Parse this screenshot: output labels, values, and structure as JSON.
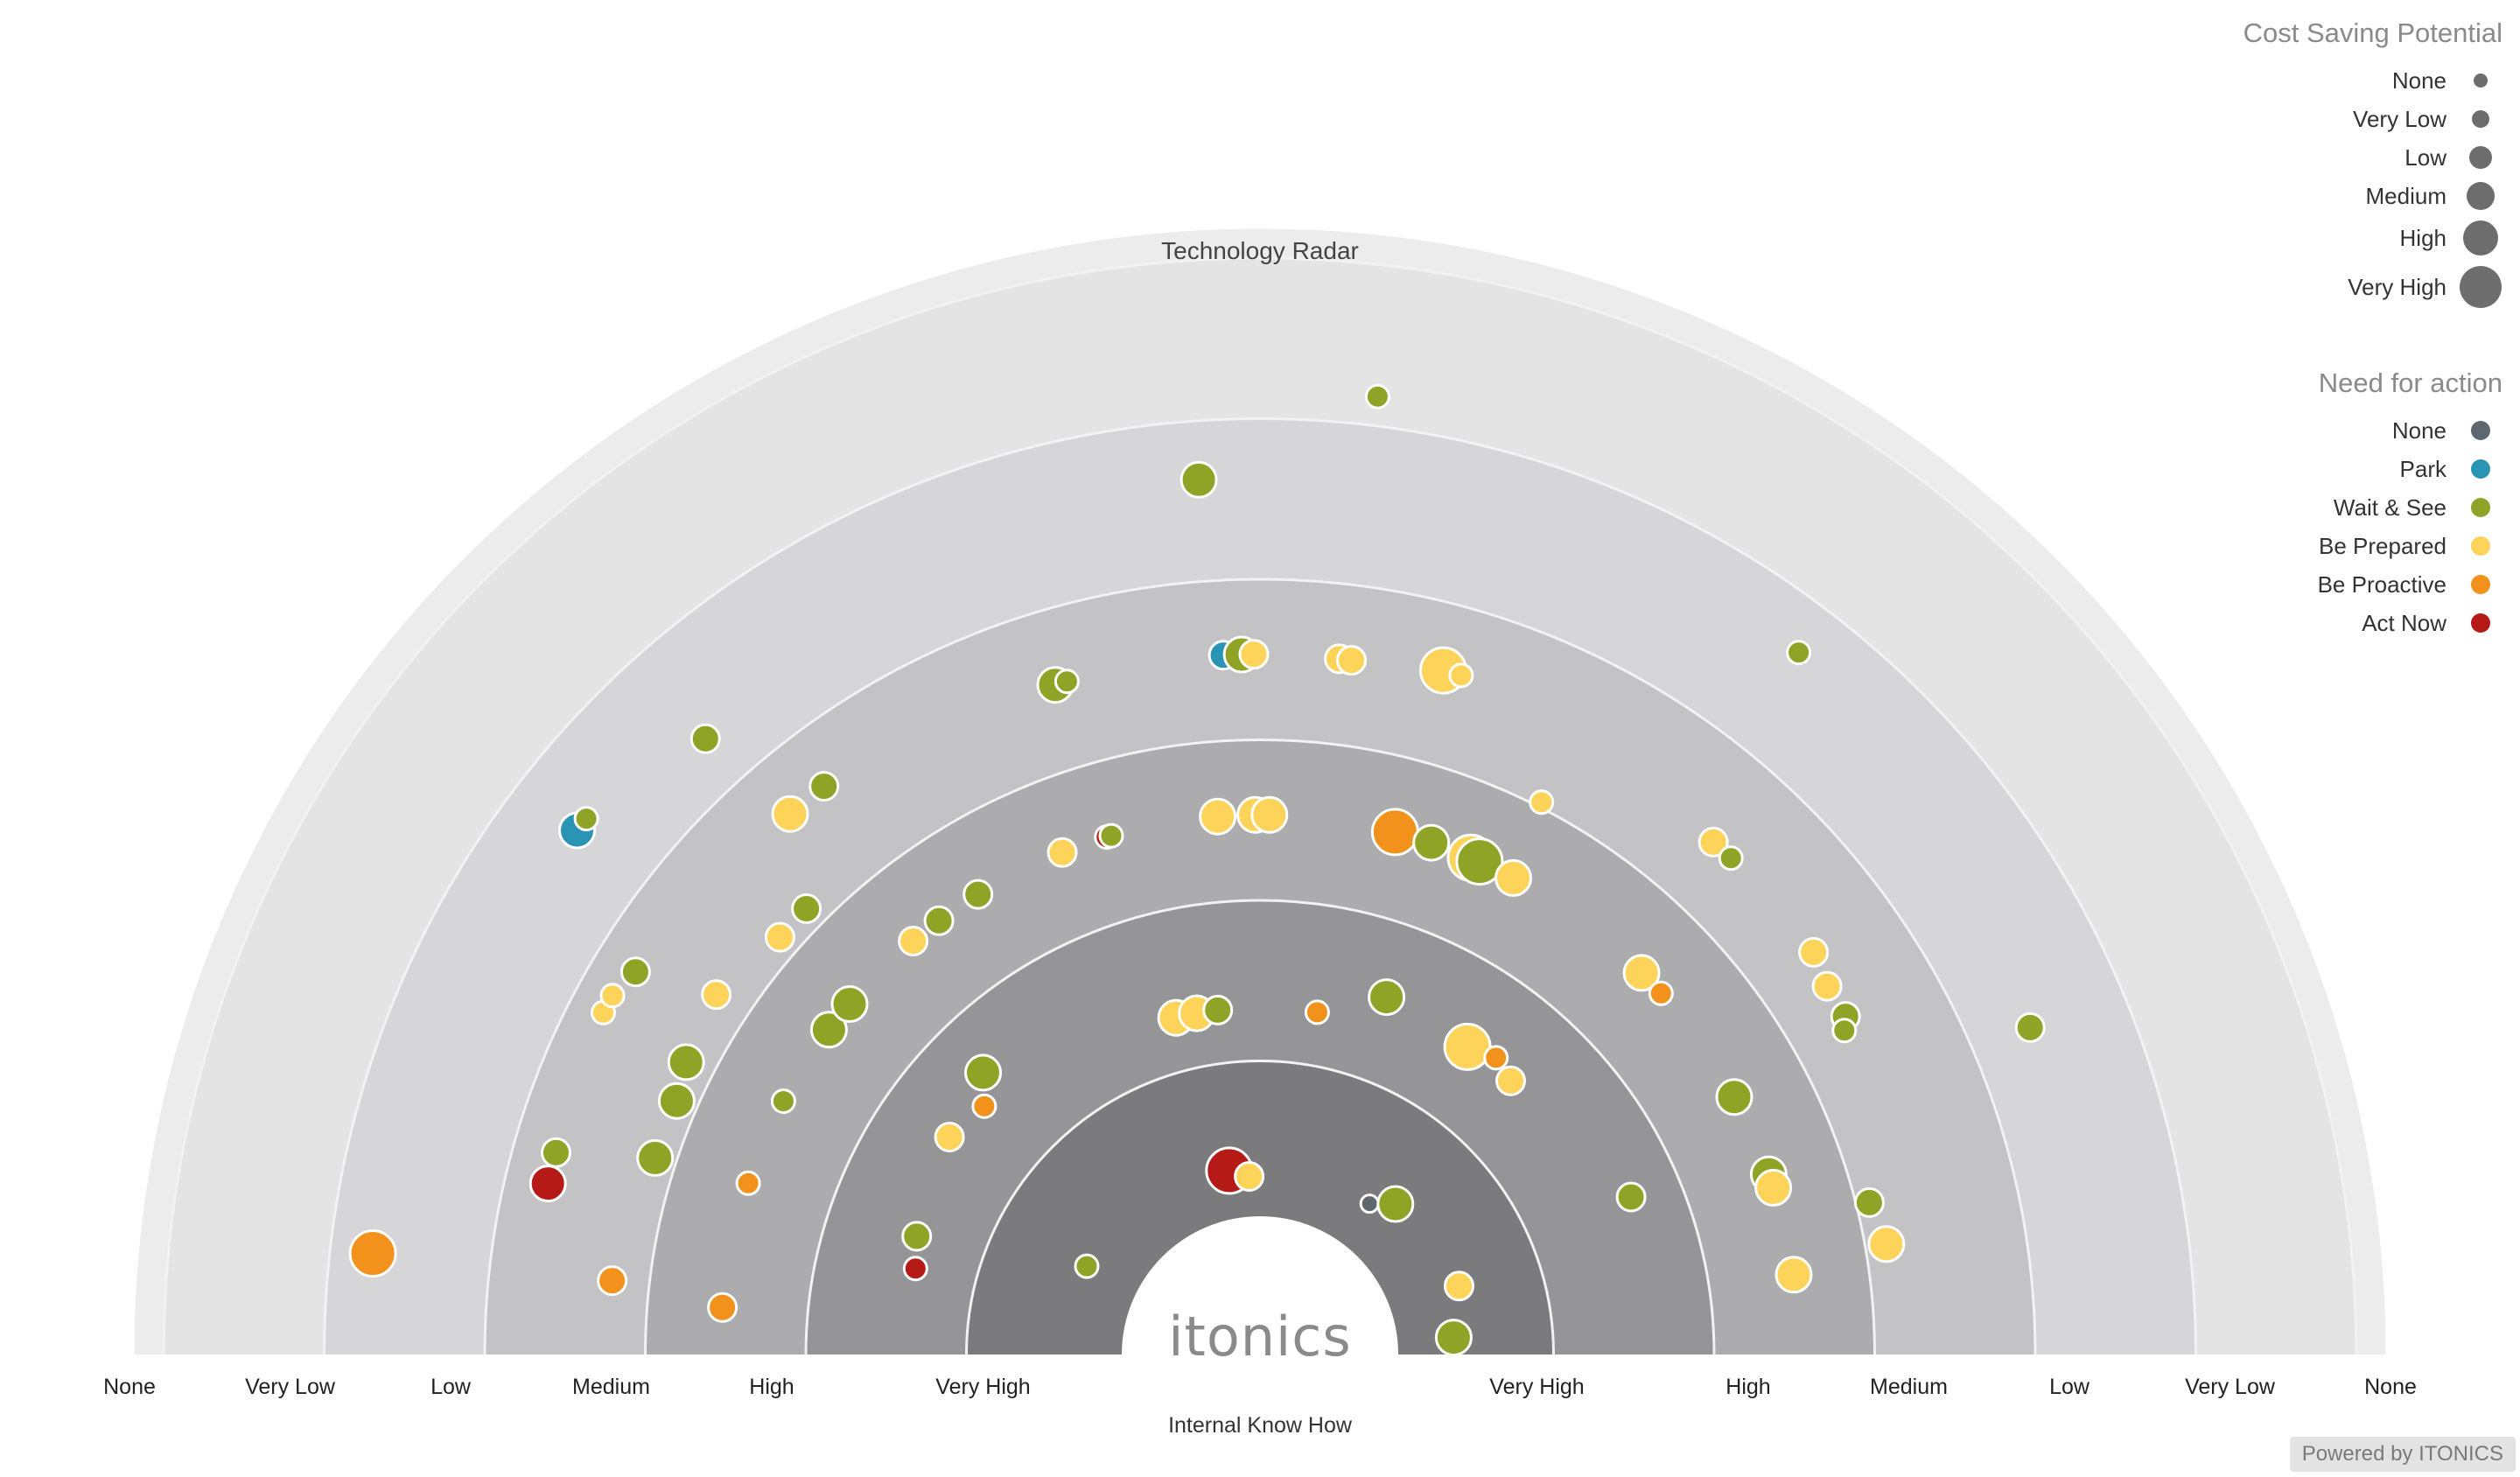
{
  "legend_cost": {
    "title": "Cost Saving Potential",
    "items": [
      {
        "label": "None",
        "size": 0
      },
      {
        "label": "Very Low",
        "size": 1
      },
      {
        "label": "Low",
        "size": 2
      },
      {
        "label": "Medium",
        "size": 3
      },
      {
        "label": "High",
        "size": 4
      },
      {
        "label": "Very High",
        "size": 5
      }
    ],
    "color": "#6d6d6d"
  },
  "legend_need": {
    "title": "Need for action",
    "items": [
      {
        "label": "None",
        "color": "#5e6770"
      },
      {
        "label": "Park",
        "color": "#2a94b5"
      },
      {
        "label": "Wait & See",
        "color": "#8fa426"
      },
      {
        "label": "Be Prepared",
        "color": "#fdd35a"
      },
      {
        "label": "Be Proactive",
        "color": "#f2911b"
      },
      {
        "label": "Act Now",
        "color": "#b51a16"
      }
    ]
  },
  "footer": {
    "powered_by": "Powered by ITONICS"
  },
  "chart_data": {
    "type": "scatter",
    "title": "Technology Radar",
    "xlabel": "Internal Know How",
    "ylabel": "",
    "center_logo": "itonics",
    "ring_labels_left": [
      "None",
      "Very Low",
      "Low",
      "Medium",
      "High",
      "Very High"
    ],
    "ring_labels_right": [
      "Very High",
      "High",
      "Medium",
      "Low",
      "Very Low",
      "None"
    ],
    "ring_colors": [
      "#7b7a7c",
      "#959496",
      "#acabad",
      "#c3c2c4",
      "#d6d5d7",
      "#e4e4e5"
    ],
    "encoding": {
      "r": "Internal Know How (0 = center ... 5.5 = outer edge, half-ring units)",
      "angle": "degrees from right baseline (0) to left baseline (180)",
      "size": "Cost Saving Potential level 0-5",
      "color": "Need for action category"
    },
    "points": [
      {
        "angle": 99.5,
        "r": 0.3,
        "size": 4,
        "cat": "Act Now"
      },
      {
        "angle": 93.5,
        "r": 0.25,
        "size": 2,
        "cat": "Be Prepared"
      },
      {
        "angle": 54,
        "r": 0.3,
        "size": 0,
        "cat": "None"
      },
      {
        "angle": 48,
        "r": 0.4,
        "size": 3,
        "cat": "Wait & See"
      },
      {
        "angle": 153,
        "r": 0.35,
        "size": 1,
        "cat": "Wait & See"
      },
      {
        "angle": 19,
        "r": 0.45,
        "size": 2,
        "cat": "Be Prepared"
      },
      {
        "angle": 5,
        "r": 0.35,
        "size": 3,
        "cat": "Wait & See"
      },
      {
        "angle": 166,
        "r": 1.35,
        "size": 1,
        "cat": "Act Now"
      },
      {
        "angle": 161,
        "r": 1.4,
        "size": 2,
        "cat": "Wait & See"
      },
      {
        "angle": 145,
        "r": 1.5,
        "size": 2,
        "cat": "Be Prepared"
      },
      {
        "angle": 138,
        "r": 1.45,
        "size": 1,
        "cat": "Be Proactive"
      },
      {
        "angle": 134.5,
        "r": 1.6,
        "size": 3,
        "cat": "Wait & See"
      },
      {
        "angle": 104,
        "r": 1.3,
        "size": 3,
        "cat": "Be Prepared"
      },
      {
        "angle": 100.5,
        "r": 1.3,
        "size": 3,
        "cat": "Be Prepared"
      },
      {
        "angle": 97,
        "r": 1.3,
        "size": 2,
        "cat": "Wait & See"
      },
      {
        "angle": 80.5,
        "r": 1.3,
        "size": 1,
        "cat": "Be Proactive"
      },
      {
        "angle": 70.5,
        "r": 1.5,
        "size": 3,
        "cat": "Wait & See"
      },
      {
        "angle": 56,
        "r": 1.45,
        "size": 4,
        "cat": "Be Prepared"
      },
      {
        "angle": 51.5,
        "r": 1.5,
        "size": 1,
        "cat": "Be Proactive"
      },
      {
        "angle": 47.5,
        "r": 1.45,
        "size": 2,
        "cat": "Be Prepared"
      },
      {
        "angle": 23,
        "r": 1.65,
        "size": 2,
        "cat": "Wait & See"
      },
      {
        "angle": 175,
        "r": 2.5,
        "size": 2,
        "cat": "Be Proactive"
      },
      {
        "angle": 161.5,
        "r": 2.5,
        "size": 1,
        "cat": "Be Proactive"
      },
      {
        "angle": 152,
        "r": 2.5,
        "size": 1,
        "cat": "Wait & See"
      },
      {
        "angle": 143,
        "r": 2.5,
        "size": 3,
        "cat": "Wait & See"
      },
      {
        "angle": 139.5,
        "r": 2.5,
        "size": 3,
        "cat": "Wait & See"
      },
      {
        "angle": 130,
        "r": 2.5,
        "size": 2,
        "cat": "Be Prepared"
      },
      {
        "angle": 126.5,
        "r": 2.5,
        "size": 2,
        "cat": "Wait & See"
      },
      {
        "angle": 121.5,
        "r": 2.5,
        "size": 2,
        "cat": "Wait & See"
      },
      {
        "angle": 111.5,
        "r": 2.5,
        "size": 2,
        "cat": "Be Prepared"
      },
      {
        "angle": 106.5,
        "r": 2.5,
        "size": 1,
        "cat": "Act Now"
      },
      {
        "angle": 106,
        "r": 2.5,
        "size": 1,
        "cat": "Wait & See"
      },
      {
        "angle": 94.5,
        "r": 2.5,
        "size": 3,
        "cat": "Be Prepared"
      },
      {
        "angle": 90.5,
        "r": 2.5,
        "size": 3,
        "cat": "Be Prepared"
      },
      {
        "angle": 89,
        "r": 2.5,
        "size": 3,
        "cat": "Be Prepared"
      },
      {
        "angle": 75.5,
        "r": 2.5,
        "size": 4,
        "cat": "Be Proactive"
      },
      {
        "angle": 71.5,
        "r": 2.5,
        "size": 3,
        "cat": "Wait & See"
      },
      {
        "angle": 67,
        "r": 2.5,
        "size": 4,
        "cat": "Be Prepared"
      },
      {
        "angle": 66,
        "r": 2.5,
        "size": 4,
        "cat": "Wait & See"
      },
      {
        "angle": 62,
        "r": 2.5,
        "size": 3,
        "cat": "Be Prepared"
      },
      {
        "angle": 45,
        "r": 2.5,
        "size": 3,
        "cat": "Be Prepared"
      },
      {
        "angle": 42,
        "r": 2.5,
        "size": 1,
        "cat": "Be Proactive"
      },
      {
        "angle": 28.5,
        "r": 2.5,
        "size": 3,
        "cat": "Wait & See"
      },
      {
        "angle": 19.5,
        "r": 2.5,
        "size": 3,
        "cat": "Wait & See"
      },
      {
        "angle": 18,
        "r": 2.5,
        "size": 3,
        "cat": "Be Prepared"
      },
      {
        "angle": 8.5,
        "r": 2.5,
        "size": 3,
        "cat": "Be Prepared"
      },
      {
        "angle": 173.5,
        "r": 3.2,
        "size": 2,
        "cat": "Be Proactive"
      },
      {
        "angle": 162,
        "r": 3.1,
        "size": 3,
        "cat": "Wait & See"
      },
      {
        "angle": 156.5,
        "r": 3.1,
        "size": 3,
        "cat": "Wait & See"
      },
      {
        "angle": 153,
        "r": 3.15,
        "size": 3,
        "cat": "Wait & See"
      },
      {
        "angle": 146.5,
        "r": 3.2,
        "size": 2,
        "cat": "Be Prepared"
      },
      {
        "angle": 139,
        "r": 3.1,
        "size": 2,
        "cat": "Be Prepared"
      },
      {
        "angle": 135.5,
        "r": 3.1,
        "size": 2,
        "cat": "Wait & See"
      },
      {
        "angle": 63,
        "r": 3.0,
        "size": 1,
        "cat": "Be Prepared"
      },
      {
        "angle": 48.5,
        "r": 3.4,
        "size": 2,
        "cat": "Be Prepared"
      },
      {
        "angle": 46.5,
        "r": 3.4,
        "size": 1,
        "cat": "Wait & See"
      },
      {
        "angle": 36,
        "r": 3.4,
        "size": 2,
        "cat": "Be Prepared"
      },
      {
        "angle": 33,
        "r": 3.35,
        "size": 2,
        "cat": "Be Prepared"
      },
      {
        "angle": 30,
        "r": 3.35,
        "size": 2,
        "cat": "Wait & See"
      },
      {
        "angle": 29,
        "r": 3.3,
        "size": 1,
        "cat": "Wait & See"
      },
      {
        "angle": 14,
        "r": 3.05,
        "size": 2,
        "cat": "Wait & See"
      },
      {
        "angle": 10,
        "r": 3.1,
        "size": 3,
        "cat": "Be Prepared"
      },
      {
        "angle": 166.5,
        "r": 3.7,
        "size": 3,
        "cat": "Act Now"
      },
      {
        "angle": 164,
        "r": 3.7,
        "size": 2,
        "cat": "Wait & See"
      },
      {
        "angle": 152.5,
        "r": 3.75,
        "size": 1,
        "cat": "Be Prepared"
      },
      {
        "angle": 151,
        "r": 3.75,
        "size": 1,
        "cat": "Be Prepared"
      },
      {
        "angle": 148.5,
        "r": 3.7,
        "size": 2,
        "cat": "Wait & See"
      },
      {
        "angle": 131,
        "r": 3.6,
        "size": 3,
        "cat": "Be Prepared"
      },
      {
        "angle": 127.5,
        "r": 3.6,
        "size": 2,
        "cat": "Wait & See"
      },
      {
        "angle": 107,
        "r": 3.5,
        "size": 3,
        "cat": "Wait & See"
      },
      {
        "angle": 106,
        "r": 3.5,
        "size": 1,
        "cat": "Wait & See"
      },
      {
        "angle": 93,
        "r": 3.5,
        "size": 2,
        "cat": "Park"
      },
      {
        "angle": 91.5,
        "r": 3.5,
        "size": 3,
        "cat": "Wait & See"
      },
      {
        "angle": 90.5,
        "r": 3.5,
        "size": 2,
        "cat": "Be Prepared"
      },
      {
        "angle": 83.5,
        "r": 3.5,
        "size": 2,
        "cat": "Be Prepared"
      },
      {
        "angle": 82.5,
        "r": 3.5,
        "size": 2,
        "cat": "Be Prepared"
      },
      {
        "angle": 75,
        "r": 3.55,
        "size": 4,
        "cat": "Be Prepared"
      },
      {
        "angle": 73.5,
        "r": 3.55,
        "size": 1,
        "cat": "Be Prepared"
      },
      {
        "angle": 23,
        "r": 4.35,
        "size": 2,
        "cat": "Wait & See"
      },
      {
        "angle": 173.5,
        "r": 4.7,
        "size": 4,
        "cat": "Be Proactive"
      },
      {
        "angle": 142.5,
        "r": 4.5,
        "size": 3,
        "cat": "Park"
      },
      {
        "angle": 141.5,
        "r": 4.5,
        "size": 1,
        "cat": "Wait & See"
      },
      {
        "angle": 132,
        "r": 4.3,
        "size": 2,
        "cat": "Wait & See"
      },
      {
        "angle": 94,
        "r": 4.6,
        "size": 3,
        "cat": "Wait & See"
      },
      {
        "angle": 83,
        "r": 5.15,
        "size": 1,
        "cat": "Wait & See"
      },
      {
        "angle": 52.5,
        "r": 4.65,
        "size": 1,
        "cat": "Wait & See"
      }
    ]
  }
}
